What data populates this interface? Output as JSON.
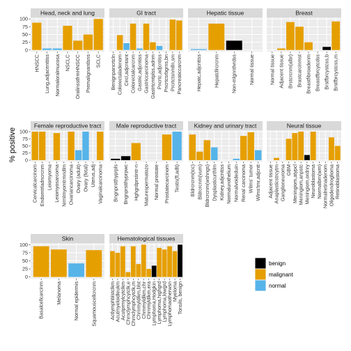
{
  "chart_data": {
    "type": "bar",
    "ylabel": "% positive",
    "ylim": [
      0,
      100
    ],
    "yticks": [
      0,
      25,
      50,
      75,
      100
    ],
    "legend": {
      "placement": "bottom-right",
      "entries": [
        {
          "label": "benign",
          "color": "#000000"
        },
        {
          "label": "malignant",
          "color": "#E69F00"
        },
        {
          "label": "normal",
          "color": "#56B4E9"
        }
      ]
    },
    "panels": [
      {
        "title": "Head, neck and lung",
        "bars": [
          {
            "label": "HNSCC",
            "value": 88,
            "class": "malignant"
          },
          {
            "label": "Lung,adjacenttiss",
            "value": 5,
            "class": "normal"
          },
          {
            "label": "Normaloralmucosa",
            "value": 5,
            "class": "normal"
          },
          {
            "label": "NSCLC",
            "value": 78,
            "class": "malignant"
          },
          {
            "label": "OralinsstfrmHNSCC",
            "value": 30,
            "class": "malignant"
          },
          {
            "label": "Premalignantlsns",
            "value": 50,
            "class": "malignant"
          },
          {
            "label": "SCLC",
            "value": 100,
            "class": "malignant"
          }
        ]
      },
      {
        "title": "GI tract",
        "bars": [
          {
            "label": "Benignpancrtcln",
            "value": 0,
            "class": "benign"
          },
          {
            "label": "Colorectaladenom",
            "value": 48,
            "class": "malignant"
          },
          {
            "label": "Circl,adjcntant",
            "value": 22,
            "class": "normal"
          },
          {
            "label": "Colorectalcarcnm",
            "value": 85,
            "class": "malignant"
          },
          {
            "label": "Gastric,adjcntiss",
            "value": 5,
            "class": "normal"
          },
          {
            "label": "Gastriccarcinoma",
            "value": 85,
            "class": "malignant"
          },
          {
            "label": "Gastrtcmtplss,adnm",
            "value": 25,
            "class": "malignant"
          },
          {
            "label": "Pncrtc,adjcntiss",
            "value": 13,
            "class": "normal"
          },
          {
            "label": "Pncrtcsrbgrns,bn",
            "value": 0,
            "class": "benign"
          },
          {
            "label": "Prcrtctsnmlln,sm",
            "value": 98,
            "class": "malignant"
          },
          {
            "label": "Pancreaticcarcnm",
            "value": 95,
            "class": "malignant"
          }
        ]
      },
      {
        "title": "Hepatic tissue",
        "bars": [
          {
            "label": "Hepatc,adjcnttss",
            "value": 3,
            "class": "normal"
          },
          {
            "label": "Hepatcllrcrcnm",
            "value": 85,
            "class": "malignant"
          },
          {
            "label": "Non-mlgnntlvrdss",
            "value": 30,
            "class": "benign"
          },
          {
            "label": "Normal tissue",
            "value": 0,
            "class": "normal"
          }
        ]
      },
      {
        "title": "Breast",
        "bars": [
          {
            "label": "Normal tissue",
            "value": 0,
            "class": "normal"
          },
          {
            "label": "Adjacent tissue",
            "value": 5,
            "class": "malignant"
          },
          {
            "label": "Brstcrcnm(albr)",
            "value": 90,
            "class": "malignant"
          },
          {
            "label": "Brastcarcinmst",
            "value": 75,
            "class": "malignant"
          },
          {
            "label": "Breastfibroadenm",
            "value": 25,
            "class": "malignant"
          },
          {
            "label": "Breastfbrcytcdss",
            "value": 0,
            "class": "benign"
          },
          {
            "label": "Brstfbrcystcss,b",
            "value": 10,
            "class": "benign"
          },
          {
            "label": "Brstfbrcystcss,m",
            "value": 92,
            "class": "malignant"
          }
        ]
      },
      {
        "title": "Female reproductive tract",
        "bars": [
          {
            "label": "Cervicalcarcinom",
            "value": 100,
            "class": "malignant"
          },
          {
            "label": "Endomtrladncrcnm",
            "value": 100,
            "class": "malignant"
          },
          {
            "label": "Leiomyoma",
            "value": 0,
            "class": "benign"
          },
          {
            "label": "Leiomyosarcoma",
            "value": 95,
            "class": "malignant"
          },
          {
            "label": "Nrmlmyomtrmndlm",
            "value": 0,
            "class": "normal"
          },
          {
            "label": "Ovariancarcinoma",
            "value": 100,
            "class": "malignant"
          },
          {
            "label": "Ovary (adult)",
            "value": 35,
            "class": "normal"
          },
          {
            "label": "Ovary (fetal)",
            "value": 100,
            "class": "normal"
          },
          {
            "label": "Uterus,adj",
            "value": 0,
            "class": "normal"
          },
          {
            "label": "Vaginalcarcinoma",
            "value": 100,
            "class": "malignant"
          }
        ]
      },
      {
        "title": "Male reproductive tract",
        "bars": [
          {
            "label": "Bngnprstthyprpls",
            "value": 5,
            "class": "benign"
          },
          {
            "label": "Bngnprstthyprpwc",
            "value": 14,
            "class": "benign"
          },
          {
            "label": "Hghgrdprstintr-n",
            "value": 60,
            "class": "malignant"
          },
          {
            "label": "Maturespermatozo",
            "value": 0,
            "class": "normal"
          },
          {
            "label": "Normal prostate",
            "value": 0,
            "class": "normal"
          },
          {
            "label": "Prostatecarcinom",
            "value": 90,
            "class": "malignant"
          },
          {
            "label": "Testis(fl,adlt)",
            "value": 100,
            "class": "normal"
          }
        ]
      },
      {
        "title": "Kidney and urinary tract",
        "bars": [
          {
            "label": "Bldrcrcnm(tcc)",
            "value": 90,
            "class": "malignant"
          },
          {
            "label": "Bldrcrcnm(vum)",
            "value": 30,
            "class": "malignant"
          },
          {
            "label": "Bldrcrcnm(wshngs)",
            "value": 70,
            "class": "malignant"
          },
          {
            "label": "Dysplasticurthlm",
            "value": 45,
            "class": "normal"
          },
          {
            "label": "Kidney,adjcnttss",
            "value": 0,
            "class": "normal"
          },
          {
            "label": "Normalurothelium",
            "value": 0,
            "class": "normal"
          },
          {
            "label": "Normalvoideduin",
            "value": 5,
            "class": "normal"
          },
          {
            "label": "Renal carcinoma",
            "value": 85,
            "class": "malignant"
          },
          {
            "label": "Wilms' tumor",
            "value": 98,
            "class": "malignant"
          },
          {
            "label": "Wlms'tmr,adjcntt",
            "value": 35,
            "class": "normal"
          }
        ]
      },
      {
        "title": "Neural tissue",
        "bars": [
          {
            "label": "Adjacent tissue",
            "value": 0,
            "class": "normal"
          },
          {
            "label": "Anaplasticstrcytm",
            "value": 8,
            "class": "malignant"
          },
          {
            "label": "Ganglioneuroma",
            "value": 0,
            "class": "benign"
          },
          {
            "label": "GBM",
            "value": 75,
            "class": "malignant"
          },
          {
            "label": "Meningiom,atypcl",
            "value": 95,
            "class": "malignant"
          },
          {
            "label": "Meningiom,anpstc",
            "value": 100,
            "class": "malignant"
          },
          {
            "label": "Meningiom,ordnry",
            "value": 18,
            "class": "benign"
          },
          {
            "label": "Neuroblastoma",
            "value": 100,
            "class": "malignant"
          },
          {
            "label": "Normalbrn(wm)",
            "value": 0,
            "class": "normal"
          },
          {
            "label": "Normalretinadenom",
            "value": 0,
            "class": "normal"
          },
          {
            "label": "Oligodendroglioma",
            "value": 80,
            "class": "malignant"
          },
          {
            "label": "Retinoblastoma",
            "value": 50,
            "class": "malignant"
          }
        ]
      },
      {
        "title": "Skin",
        "bars": [
          {
            "label": "Basalcellcarcinm",
            "value": 95,
            "class": "malignant"
          },
          {
            "label": "Melanoma",
            "value": 85,
            "class": "malignant"
          },
          {
            "label": "Normal epidermis",
            "value": 42,
            "class": "normal"
          },
          {
            "label": "Squamouscellcrcnm",
            "value": 83,
            "class": "malignant"
          }
        ]
      },
      {
        "title": "Hematological tissues",
        "bars": [
          {
            "label": "Actlymphblstclkm",
            "value": 80,
            "class": "malignant"
          },
          {
            "label": "Acutmyeloidleukm",
            "value": 75,
            "class": "malignant"
          },
          {
            "label": "Acutprmylcytclkm",
            "value": 95,
            "class": "malignant"
          },
          {
            "label": "Chrnclymphcytclk,e",
            "value": 15,
            "class": "malignant"
          },
          {
            "label": "Chrnclymphcytclk,m",
            "value": 95,
            "class": "malignant"
          },
          {
            "label": "Chrnmyldlkm,blst",
            "value": 40,
            "class": "malignant"
          },
          {
            "label": "Chrnmyldlkm,chr",
            "value": 100,
            "class": "malignant"
          },
          {
            "label": "Chrnmyldlkm,era",
            "value": 25,
            "class": "malignant"
          },
          {
            "label": "Lymphoma,Hodgkin",
            "value": 35,
            "class": "benign"
          },
          {
            "label": "Lymphoma,highgrd",
            "value": 90,
            "class": "malignant"
          },
          {
            "label": "Lymphoma,lowgrd",
            "value": 85,
            "class": "malignant"
          },
          {
            "label": "Lymphomaotherwsn",
            "value": 95,
            "class": "malignant"
          },
          {
            "label": "Myeloma",
            "value": 80,
            "class": "malignant"
          },
          {
            "label": "Tonsils, benign",
            "value": 100,
            "class": "benign"
          }
        ]
      }
    ]
  }
}
